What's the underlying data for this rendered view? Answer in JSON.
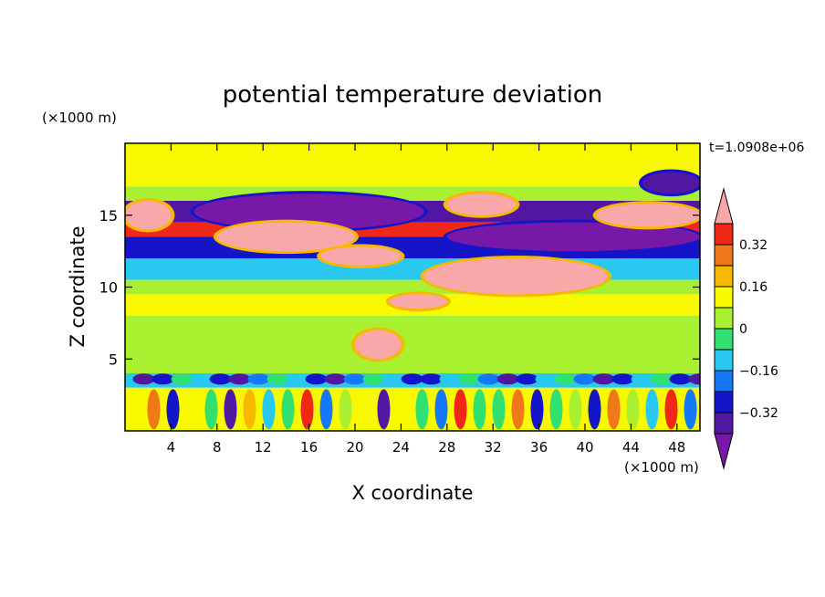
{
  "chart_data": {
    "type": "heatmap",
    "title": "potential temperature deviation",
    "xlabel": "X coordinate",
    "ylabel": "Z coordinate",
    "x_unit": "(×1000 m)",
    "y_unit": "(×1000 m)",
    "time_label": "t=1.0908e+06",
    "xlim": [
      0,
      50
    ],
    "ylim": [
      0,
      20
    ],
    "x_ticks": [
      "4",
      "8",
      "12",
      "16",
      "20",
      "24",
      "28",
      "32",
      "36",
      "40",
      "44",
      "48"
    ],
    "y_ticks": [
      "5",
      "10",
      "15"
    ],
    "colorbar": {
      "labels": [
        "0.32",
        "0.16",
        "0",
        "−0.16",
        "−0.32"
      ],
      "levels": [
        0.4,
        0.32,
        0.24,
        0.16,
        0.08,
        0,
        -0.08,
        -0.16,
        -0.24,
        -0.32,
        -0.4
      ],
      "colors": [
        "#f8a8a8",
        "#f02818",
        "#f07818",
        "#f8b800",
        "#f8f800",
        "#a8f030",
        "#30e070",
        "#28c8f0",
        "#1478f8",
        "#1414c8",
        "#5018a0",
        "#7818a8"
      ]
    },
    "bands": [
      {
        "z": [
          18.5,
          20.0
        ],
        "value": 0.08
      },
      {
        "z": [
          17.0,
          18.5
        ],
        "value": 0.12
      },
      {
        "z": [
          16.0,
          17.0
        ],
        "value": 0.02
      },
      {
        "z": [
          14.5,
          16.0
        ],
        "value": -0.36
      },
      {
        "z": [
          13.5,
          14.5
        ],
        "value": 0.35
      },
      {
        "z": [
          12.0,
          13.5
        ],
        "value": -0.3
      },
      {
        "z": [
          10.5,
          12.0
        ],
        "value": -0.1
      },
      {
        "z": [
          9.5,
          10.5
        ],
        "value": 0.05
      },
      {
        "z": [
          8.0,
          9.5
        ],
        "value": 0.1
      },
      {
        "z": [
          6.0,
          8.0
        ],
        "value": 0.03
      },
      {
        "z": [
          4.0,
          6.0
        ],
        "value": 0.06
      },
      {
        "z": [
          3.0,
          4.0
        ],
        "value": -0.12
      },
      {
        "z": [
          0.0,
          3.0
        ],
        "value": 0.15
      }
    ],
    "warm_anomalies": [
      {
        "x": [
          0,
          4
        ],
        "z": [
          14.0,
          16.0
        ],
        "value": 0.42
      },
      {
        "x": [
          8,
          20
        ],
        "z": [
          12.5,
          14.5
        ],
        "value": 0.42
      },
      {
        "x": [
          17,
          24
        ],
        "z": [
          11.5,
          12.8
        ],
        "value": 0.42
      },
      {
        "x": [
          28,
          34
        ],
        "z": [
          15.0,
          16.5
        ],
        "value": 0.42
      },
      {
        "x": [
          41,
          50
        ],
        "z": [
          14.2,
          15.8
        ],
        "value": 0.42
      },
      {
        "x": [
          26,
          42
        ],
        "z": [
          9.5,
          12.0
        ],
        "value": 0.42
      },
      {
        "x": [
          23,
          28
        ],
        "z": [
          8.5,
          9.5
        ],
        "value": 0.42
      },
      {
        "x": [
          20,
          24
        ],
        "z": [
          5.0,
          7.0
        ],
        "value": 0.42
      }
    ],
    "cold_anomalies": [
      {
        "x": [
          6,
          26
        ],
        "z": [
          14.0,
          16.5
        ],
        "value": -0.42
      },
      {
        "x": [
          28,
          50
        ],
        "z": [
          12.5,
          14.5
        ],
        "value": -0.42
      },
      {
        "x": [
          45,
          50
        ],
        "z": [
          16.5,
          18.0
        ],
        "value": -0.4
      }
    ]
  }
}
